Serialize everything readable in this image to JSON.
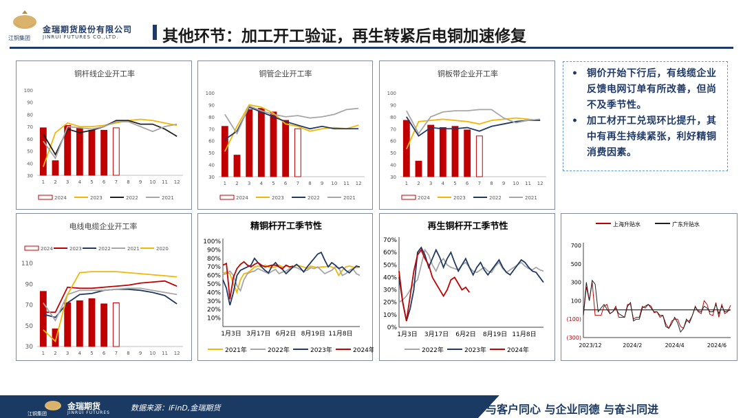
{
  "header": {
    "company_cn": "金瑞期货股份有限公司",
    "company_en": "JINRUI FUTURES CO.,LTD.",
    "group_cn": "江铜集团",
    "title": "其他环节：加工开工验证，再生转紧后电铜加速修复"
  },
  "notes": [
    "铜价开始下行后，有线缆企业反馈电网订单有所改善，但尚不及季节性。",
    "加工材开工兑现环比提升，其中有再生持续紧张，利好精铜消费因素。"
  ],
  "footer": {
    "logo_cn": "金瑞期货",
    "logo_en": "JINRUI FUTURES",
    "group_cn": "江铜集团",
    "source": "数据来源：iFinD,金瑞期货",
    "slogan": "与客户同心  与企业同德  与奋斗同进"
  },
  "colors": {
    "brand": "#1f3a68",
    "bar": "#c00000",
    "y2023": "#f2b705",
    "y2022": "#1f1f1f",
    "y2021": "#a6a6a6",
    "navy": "#1f3864",
    "gray": "#8c8c8c",
    "red": "#c00000"
  },
  "chart_data": [
    {
      "id": "c1",
      "type": "bar",
      "title": "铜杆线企业开工率",
      "x": [
        1,
        2,
        3,
        4,
        5,
        6,
        7,
        8,
        9,
        10,
        11,
        12
      ],
      "ylim": [
        30,
        100
      ],
      "yticks": [
        30,
        40,
        50,
        60,
        70,
        80,
        90,
        100
      ],
      "series": [
        {
          "name": "2024",
          "kind": "bar",
          "values": [
            69,
            42,
            71,
            69,
            67,
            67,
            69,
            null,
            null,
            null,
            null,
            null
          ]
        },
        {
          "name": "2023",
          "kind": "line",
          "color": "#f2b705",
          "values": [
            37,
            65,
            73,
            70,
            70,
            71,
            73,
            75,
            76,
            75,
            73,
            71
          ]
        },
        {
          "name": "2022",
          "kind": "line",
          "color": "#1f1f1f",
          "values": [
            64,
            47,
            68,
            65,
            67,
            70,
            75,
            75,
            72,
            72,
            68,
            62
          ]
        },
        {
          "name": "2021",
          "kind": "line",
          "color": "#a6a6a6",
          "values": [
            58,
            44,
            70,
            69,
            68,
            70,
            74,
            74,
            70,
            66,
            70,
            72
          ]
        }
      ]
    },
    {
      "id": "c2",
      "type": "bar",
      "title": "铜管企业开工率",
      "x": [
        1,
        2,
        3,
        4,
        5,
        6,
        7,
        8,
        9,
        10,
        11,
        12
      ],
      "ylim": [
        30,
        100
      ],
      "yticks": [
        30,
        40,
        50,
        60,
        70,
        80,
        90,
        100
      ],
      "series": [
        {
          "name": "2024",
          "kind": "bar",
          "values": [
            72,
            48,
            86,
            87,
            84,
            77,
            70,
            null,
            null,
            null,
            null,
            null
          ]
        },
        {
          "name": "2023",
          "kind": "line",
          "color": "#f2b705",
          "values": [
            51,
            72,
            90,
            88,
            83,
            74,
            72,
            68,
            70,
            71,
            70,
            73
          ]
        },
        {
          "name": "2022",
          "kind": "line",
          "color": "#1f3864",
          "values": [
            61,
            68,
            88,
            84,
            80,
            76,
            73,
            70,
            72,
            70,
            70,
            70
          ]
        },
        {
          "name": "2021",
          "kind": "line",
          "color": "#a6a6a6",
          "values": [
            82,
            66,
            89,
            85,
            82,
            80,
            81,
            79,
            80,
            82,
            86,
            87
          ]
        }
      ]
    },
    {
      "id": "c3",
      "type": "bar",
      "title": "铜板带企业开工率",
      "x": [
        1,
        2,
        3,
        4,
        5,
        6,
        7,
        8,
        9,
        10,
        11,
        12
      ],
      "ylim": [
        30,
        100
      ],
      "yticks": [
        30,
        40,
        50,
        60,
        70,
        80,
        90,
        100
      ],
      "series": [
        {
          "name": "2024",
          "kind": "bar",
          "values": [
            77,
            43,
            73,
            71,
            72,
            69,
            64,
            null,
            null,
            null,
            null,
            null
          ]
        },
        {
          "name": "2023",
          "kind": "line",
          "color": "#f2b705",
          "values": [
            53,
            76,
            77,
            78,
            77,
            76,
            74,
            77,
            78,
            79,
            78,
            77
          ]
        },
        {
          "name": "2022",
          "kind": "line",
          "color": "#1f3864",
          "values": [
            80,
            64,
            71,
            70,
            70,
            71,
            68,
            72,
            74,
            76,
            77,
            77
          ]
        },
        {
          "name": "2021",
          "kind": "line",
          "color": "#a6a6a6",
          "values": [
            85,
            66,
            80,
            84,
            85,
            85,
            86,
            86,
            79,
            75,
            77,
            78
          ]
        }
      ]
    },
    {
      "id": "c4",
      "type": "bar",
      "title": "电线电缆企业开工率",
      "x": [
        1,
        2,
        3,
        4,
        5,
        6,
        7,
        8,
        9,
        10,
        11,
        12
      ],
      "ylim": [
        30,
        110
      ],
      "yticks": [
        30,
        50,
        70,
        90,
        110
      ],
      "series": [
        {
          "name": "2024",
          "kind": "bar",
          "values": [
            83,
            47,
            72,
            74,
            76,
            71,
            72,
            null,
            null,
            null,
            null,
            null
          ]
        },
        {
          "name": "2023",
          "kind": "line",
          "color": "#c00000",
          "values": [
            63,
            63,
            87,
            86,
            86,
            87,
            88,
            89,
            91,
            92,
            93,
            88
          ]
        },
        {
          "name": "2022",
          "kind": "line",
          "color": "#1f3864",
          "values": [
            61,
            58,
            72,
            80,
            81,
            84,
            85,
            85,
            84,
            82,
            79,
            71
          ]
        },
        {
          "name": "2021",
          "kind": "line",
          "color": "#a6a6a6",
          "values": [
            72,
            55,
            80,
            84,
            84,
            84,
            85,
            86,
            86,
            84,
            82,
            80
          ]
        },
        {
          "name": "2020",
          "kind": "line",
          "color": "#f2b705",
          "values": [
            46,
            35,
            80,
            101,
            102,
            102,
            102,
            101,
            100,
            99,
            98,
            97
          ]
        }
      ]
    },
    {
      "id": "c5",
      "type": "line",
      "title": "精铜杆开工季节性",
      "xticks": [
        "1月3日",
        "3月17日",
        "6月2日",
        "8月19日",
        "11月8日"
      ],
      "ylim": [
        0,
        100
      ],
      "yticks": [
        "10%",
        "20%",
        "30%",
        "40%",
        "50%",
        "60%",
        "70%",
        "80%",
        "90%",
        "100%"
      ],
      "series": [
        {
          "name": "2021年",
          "color": "#f2b705",
          "values": [
            62,
            64,
            62,
            50,
            40,
            55,
            62,
            63,
            66,
            70,
            71,
            70,
            72,
            70,
            69,
            70,
            72,
            70,
            71,
            70,
            69,
            72,
            71,
            70,
            68,
            71,
            70,
            69,
            70,
            70,
            71,
            70,
            68,
            60,
            66,
            70,
            71,
            70,
            69,
            70
          ]
        },
        {
          "name": "2022年",
          "color": "#a6a6a6",
          "values": [
            61,
            62,
            65,
            60,
            48,
            42,
            55,
            62,
            64,
            65,
            68,
            66,
            64,
            62,
            65,
            67,
            62,
            64,
            65,
            68,
            70,
            69,
            67,
            65,
            66,
            69,
            68,
            70,
            66,
            62,
            64,
            66,
            70,
            69,
            60,
            62,
            66,
            68,
            62,
            60
          ]
        },
        {
          "name": "2023年",
          "color": "#1f3864",
          "values": [
            55,
            45,
            25,
            40,
            60,
            66,
            68,
            70,
            72,
            80,
            75,
            70,
            66,
            63,
            71,
            75,
            70,
            67,
            62,
            66,
            70,
            73,
            69,
            64,
            70,
            75,
            80,
            85,
            87,
            78,
            70,
            75,
            72,
            68,
            70,
            66,
            63,
            67,
            71,
            70
          ]
        },
        {
          "name": "2024年",
          "color": "#c00000",
          "values": [
            72,
            74,
            32,
            58,
            68,
            73,
            76,
            72,
            70,
            73,
            75,
            72,
            70,
            71,
            72,
            72,
            70,
            68,
            72,
            70,
            71,
            null,
            null,
            null,
            null,
            null,
            null,
            null,
            null,
            null,
            null,
            null,
            null,
            null,
            null,
            null,
            null,
            null,
            null,
            null
          ]
        }
      ]
    },
    {
      "id": "c6",
      "type": "line",
      "title": "再生铜杆开工季节性",
      "xticks": [
        "1月3日",
        "3月17日",
        "6月2日",
        "8月19日",
        "11月8日"
      ],
      "ylim": [
        0,
        70
      ],
      "yticks": [
        "0%",
        "10%",
        "20%",
        "30%",
        "40%",
        "50%",
        "60%",
        "70%"
      ],
      "series": [
        {
          "name": "2022年",
          "color": "#a6a6a6",
          "values": [
            20,
            22,
            25,
            30,
            35,
            38,
            50,
            62,
            58,
            50,
            45,
            52,
            55,
            50,
            48,
            47,
            46,
            50,
            52,
            48,
            45,
            44,
            46,
            48,
            45,
            44,
            49,
            52,
            47,
            44,
            46,
            48,
            50,
            52,
            49,
            47,
            46,
            48,
            46,
            45
          ]
        },
        {
          "name": "2023年",
          "color": "#1f3864",
          "values": [
            40,
            20,
            5,
            15,
            30,
            60,
            64,
            58,
            48,
            55,
            62,
            56,
            48,
            55,
            60,
            52,
            45,
            50,
            55,
            48,
            42,
            48,
            52,
            46,
            42,
            46,
            50,
            54,
            48,
            44,
            42,
            46,
            50,
            54,
            52,
            48,
            45,
            44,
            40,
            36
          ]
        },
        {
          "name": "2024年",
          "color": "#c00000",
          "values": [
            45,
            20,
            5,
            25,
            45,
            58,
            62,
            55,
            50,
            40,
            35,
            30,
            25,
            30,
            38,
            40,
            35,
            30,
            32,
            28,
            null,
            null,
            null,
            null,
            null,
            null,
            null,
            null,
            null,
            null,
            null,
            null,
            null,
            null,
            null,
            null,
            null,
            null,
            null,
            null
          ]
        }
      ]
    },
    {
      "id": "c7",
      "type": "line",
      "title": "",
      "xticks": [
        "2023/12",
        "2024/2",
        "2024/4",
        "2024/6"
      ],
      "ylim": [
        -300,
        700
      ],
      "yticks": [
        "(300)",
        "(100)",
        "100",
        "300",
        "500",
        "700"
      ],
      "series": [
        {
          "name": "上海升贴水",
          "color": "#c00000",
          "values": [
            -60,
            250,
            100,
            300,
            -60,
            -60,
            -60,
            40,
            60,
            -40,
            -20,
            40,
            -80,
            -80,
            -80,
            60,
            60,
            -100,
            -80,
            -80,
            40,
            20,
            60,
            40,
            -30,
            -20,
            -80,
            -60,
            -150,
            -200,
            -120,
            -100,
            -100,
            -180,
            -200,
            -120,
            -120,
            -60,
            40,
            -20,
            -40,
            100,
            60,
            -50,
            -60,
            80,
            -80,
            60,
            -40,
            -20,
            50
          ]
        },
        {
          "name": "广东升贴水",
          "color": "#1f1f1f",
          "values": [
            -60,
            300,
            100,
            320,
            280,
            -20,
            20,
            60,
            10,
            -40,
            -20,
            20,
            -40,
            -60,
            -80,
            40,
            80,
            -120,
            -100,
            -100,
            20,
            40,
            60,
            20,
            -20,
            -20,
            -60,
            -60,
            -180,
            -200,
            -150,
            -80,
            -140,
            -240,
            -200,
            -100,
            -140,
            -60,
            30,
            -10,
            -20,
            40,
            20,
            -20,
            -20,
            60,
            -40,
            40,
            -20,
            -10,
            0
          ]
        }
      ]
    }
  ]
}
